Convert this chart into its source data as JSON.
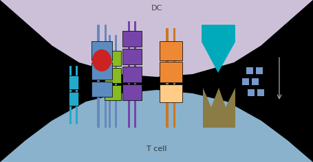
{
  "bg_color": "#000000",
  "dc_region_color": "#ccc0d9",
  "tcell_region_color": "#8ab2cc",
  "dc_label": "DC",
  "tcell_label": "T cell",
  "fig_width": 4.55,
  "fig_height": 2.36,
  "dpi": 100,
  "blue_bar_color": "#6688bb",
  "blue_box_color": "#5b8bbf",
  "green_box_color": "#88bb22",
  "purple_box_color": "#7744aa",
  "cyan_box_color": "#22aacc",
  "orange_box_color": "#ee8833",
  "orange_light_color": "#ffcc88",
  "red_ellipse_color": "#cc2222",
  "cyan_shape_color": "#00aabb",
  "olive_color": "#8a7c44",
  "small_sq_color": "#7799cc",
  "arrow_color": "#999999"
}
